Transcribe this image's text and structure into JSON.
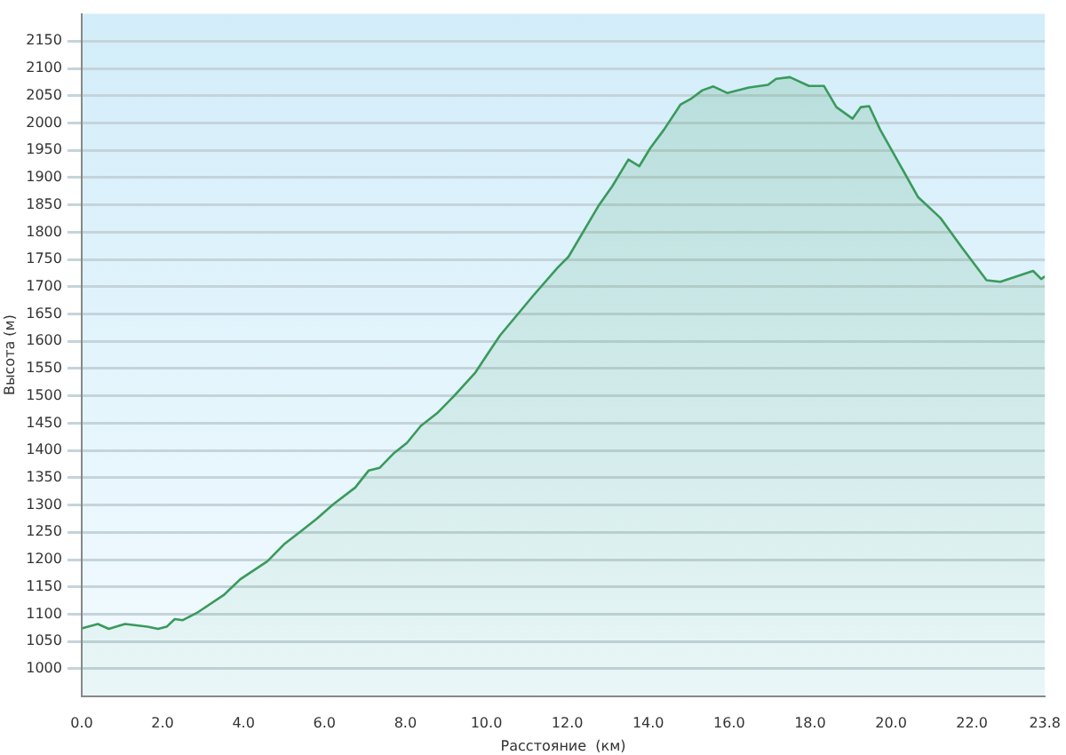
{
  "chart_data": {
    "type": "area",
    "xlabel": "Расстояние  (км)",
    "ylabel": "Высота (м)",
    "xlim": [
      0,
      23.8
    ],
    "ylim": [
      950,
      2200
    ],
    "xticks": [
      {
        "value": 0,
        "label": "0.0"
      },
      {
        "value": 2,
        "label": "2.0"
      },
      {
        "value": 4,
        "label": "4.0"
      },
      {
        "value": 6,
        "label": "6.0"
      },
      {
        "value": 8,
        "label": "8.0"
      },
      {
        "value": 10,
        "label": "10.0"
      },
      {
        "value": 12,
        "label": "12.0"
      },
      {
        "value": 14,
        "label": "14.0"
      },
      {
        "value": 16,
        "label": "16.0"
      },
      {
        "value": 18,
        "label": "18.0"
      },
      {
        "value": 20,
        "label": "20.0"
      },
      {
        "value": 22,
        "label": "22.0"
      },
      23.8
    ],
    "yticks": [
      1000,
      1050,
      1100,
      1150,
      1200,
      1250,
      1300,
      1350,
      1400,
      1450,
      1500,
      1550,
      1600,
      1650,
      1700,
      1750,
      1800,
      1850,
      1900,
      1950,
      2000,
      2050,
      2100,
      2150
    ],
    "grid": "y",
    "legend": false,
    "marker": "none",
    "line_style": "solid",
    "series": [
      {
        "color": "#3a9a5c",
        "x": [
          0,
          0.4,
          0.67,
          1.07,
          1.62,
          1.89,
          2.1,
          2.3,
          2.5,
          2.84,
          3.51,
          3.92,
          4.59,
          5.0,
          5.4,
          5.81,
          6.21,
          6.76,
          7.09,
          7.36,
          7.7,
          8.04,
          8.38,
          8.78,
          9.19,
          9.73,
          10.06,
          10.34,
          11.15,
          11.76,
          12.03,
          12.77,
          13.11,
          13.51,
          13.78,
          14.05,
          14.39,
          14.8,
          15.07,
          15.34,
          15.61,
          15.95,
          16.49,
          16.96,
          17.16,
          17.5,
          17.97,
          18.34,
          18.65,
          19.05,
          19.25,
          19.46,
          19.73,
          20.67,
          21.22,
          21.76,
          22.36,
          22.7,
          23.51,
          23.71,
          23.8
        ],
        "values": [
          1074,
          1082,
          1073,
          1082,
          1077,
          1073,
          1077,
          1091,
          1089,
          1102,
          1135,
          1164,
          1197,
          1228,
          1251,
          1275,
          1301,
          1332,
          1363,
          1368,
          1394,
          1414,
          1445,
          1468,
          1499,
          1543,
          1580,
          1611,
          1683,
          1735,
          1755,
          1848,
          1884,
          1933,
          1921,
          1954,
          1988,
          2034,
          2045,
          2060,
          2067,
          2055,
          2065,
          2070,
          2081,
          2084,
          2068,
          2068,
          2029,
          2008,
          2029,
          2031,
          1988,
          1864,
          1826,
          1771,
          1712,
          1709,
          1729,
          1714,
          1719
        ]
      }
    ]
  }
}
